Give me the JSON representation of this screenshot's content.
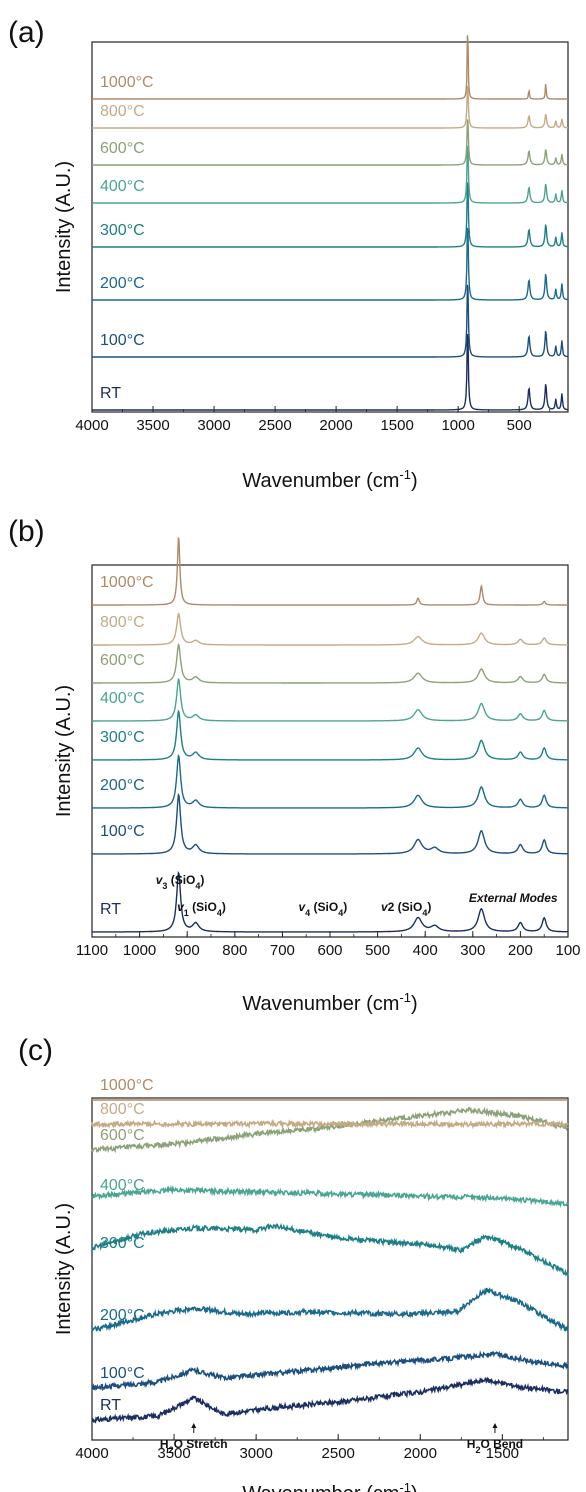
{
  "colors": {
    "RT": "#1b2f5e",
    "100°C": "#1d4f7e",
    "200°C": "#1a6a8c",
    "300°C": "#1e7f86",
    "400°C": "#4aa593",
    "600°C": "#8ca27a",
    "800°C": "#c4ab86",
    "1000°C": "#b08a68"
  },
  "chart_data": [
    {
      "type": "line",
      "panel": "(a)",
      "xlabel_main": "Wavenumber (cm",
      "xlabel_sup": "-1",
      "xlabel_tail": ")",
      "ylabel": "Intensity (A.U.)",
      "xlim": [
        4000,
        100
      ],
      "x_reversed": true,
      "x_ticks": [
        4000,
        3500,
        3000,
        2500,
        2000,
        1500,
        1000,
        500
      ],
      "y_ticks": false,
      "grid": false,
      "series": [
        {
          "name": "RT",
          "peaks": [
            {
              "x": 922,
              "h": 1.0,
              "w": 6
            },
            {
              "x": 420,
              "h": 0.25,
              "w": 9
            },
            {
              "x": 282,
              "h": 0.3,
              "w": 8
            },
            {
              "x": 200,
              "h": 0.12,
              "w": 6
            },
            {
              "x": 150,
              "h": 0.18,
              "w": 6
            }
          ]
        },
        {
          "name": "100°C",
          "peaks": [
            {
              "x": 922,
              "h": 0.95,
              "w": 6
            },
            {
              "x": 420,
              "h": 0.24,
              "w": 9
            },
            {
              "x": 282,
              "h": 0.3,
              "w": 8
            },
            {
              "x": 200,
              "h": 0.12,
              "w": 6
            },
            {
              "x": 150,
              "h": 0.18,
              "w": 6
            }
          ]
        },
        {
          "name": "200°C",
          "peaks": [
            {
              "x": 922,
              "h": 0.95,
              "w": 6
            },
            {
              "x": 420,
              "h": 0.23,
              "w": 9
            },
            {
              "x": 282,
              "h": 0.3,
              "w": 8
            },
            {
              "x": 200,
              "h": 0.12,
              "w": 6
            },
            {
              "x": 150,
              "h": 0.18,
              "w": 6
            }
          ]
        },
        {
          "name": "300°C",
          "peaks": [
            {
              "x": 922,
              "h": 0.85,
              "w": 6
            },
            {
              "x": 420,
              "h": 0.2,
              "w": 9
            },
            {
              "x": 282,
              "h": 0.26,
              "w": 8
            },
            {
              "x": 200,
              "h": 0.11,
              "w": 6
            },
            {
              "x": 150,
              "h": 0.16,
              "w": 6
            }
          ]
        },
        {
          "name": "400°C",
          "peaks": [
            {
              "x": 922,
              "h": 0.75,
              "w": 6
            },
            {
              "x": 420,
              "h": 0.18,
              "w": 9
            },
            {
              "x": 282,
              "h": 0.22,
              "w": 8
            },
            {
              "x": 200,
              "h": 0.1,
              "w": 6
            },
            {
              "x": 150,
              "h": 0.14,
              "w": 6
            }
          ]
        },
        {
          "name": "600°C",
          "peaks": [
            {
              "x": 922,
              "h": 0.6,
              "w": 6
            },
            {
              "x": 420,
              "h": 0.16,
              "w": 9
            },
            {
              "x": 282,
              "h": 0.18,
              "w": 8
            },
            {
              "x": 200,
              "h": 0.08,
              "w": 6
            },
            {
              "x": 150,
              "h": 0.12,
              "w": 6
            }
          ]
        },
        {
          "name": "800°C",
          "peaks": [
            {
              "x": 922,
              "h": 0.55,
              "w": 6
            },
            {
              "x": 420,
              "h": 0.14,
              "w": 9
            },
            {
              "x": 282,
              "h": 0.16,
              "w": 8
            },
            {
              "x": 200,
              "h": 0.08,
              "w": 6
            },
            {
              "x": 150,
              "h": 0.1,
              "w": 6
            }
          ]
        },
        {
          "name": "1000°C",
          "peaks": [
            {
              "x": 922,
              "h": 1.0,
              "w": 4
            },
            {
              "x": 420,
              "h": 0.12,
              "w": 4
            },
            {
              "x": 282,
              "h": 0.2,
              "w": 4
            }
          ]
        }
      ]
    },
    {
      "type": "line",
      "panel": "(b)",
      "xlabel_main": "Wavenumber (cm",
      "xlabel_sup": "-1",
      "xlabel_tail": ")",
      "ylabel": "Intensity (A.U.)",
      "xlim": [
        1100,
        100
      ],
      "x_reversed": true,
      "x_ticks": [
        1100,
        1000,
        900,
        800,
        700,
        600,
        500,
        400,
        300,
        200,
        100
      ],
      "y_ticks": false,
      "grid": false,
      "annotations": [
        {
          "x": 915,
          "parts": [
            [
              "v",
              true
            ],
            [
              "3",
              "sub"
            ],
            [
              " (SiO",
              false
            ],
            [
              "4",
              "sub"
            ],
            [
              ")",
              false
            ]
          ]
        },
        {
          "x": 870,
          "parts": [
            [
              "v",
              true
            ],
            [
              "1",
              "sub"
            ],
            [
              " (SiO",
              false
            ],
            [
              "4",
              "sub"
            ],
            [
              ")",
              false
            ]
          ]
        },
        {
          "x": 615,
          "parts": [
            [
              "v",
              true
            ],
            [
              "4",
              "sub"
            ],
            [
              " (SiO",
              false
            ],
            [
              "4",
              "sub"
            ],
            [
              ")",
              false
            ]
          ]
        },
        {
          "x": 440,
          "parts": [
            [
              "v",
              true
            ],
            [
              "2",
              false
            ],
            [
              " (SiO",
              false
            ],
            [
              "4",
              "sub"
            ],
            [
              ")",
              false
            ]
          ]
        },
        {
          "x": 215,
          "text": "External Modes"
        }
      ],
      "series": [
        {
          "name": "RT",
          "peaks": [
            {
              "x": 918,
              "h": 0.85,
              "w": 5
            },
            {
              "x": 882,
              "h": 0.12,
              "w": 8
            },
            {
              "x": 415,
              "h": 0.2,
              "w": 10
            },
            {
              "x": 380,
              "h": 0.08,
              "w": 10
            },
            {
              "x": 282,
              "h": 0.33,
              "w": 8
            },
            {
              "x": 200,
              "h": 0.13,
              "w": 6
            },
            {
              "x": 150,
              "h": 0.2,
              "w": 5
            }
          ]
        },
        {
          "name": "100°C",
          "peaks": [
            {
              "x": 918,
              "h": 0.85,
              "w": 5
            },
            {
              "x": 882,
              "h": 0.12,
              "w": 8
            },
            {
              "x": 415,
              "h": 0.2,
              "w": 10
            },
            {
              "x": 380,
              "h": 0.08,
              "w": 10
            },
            {
              "x": 282,
              "h": 0.33,
              "w": 8
            },
            {
              "x": 200,
              "h": 0.13,
              "w": 6
            },
            {
              "x": 150,
              "h": 0.2,
              "w": 5
            }
          ]
        },
        {
          "name": "200°C",
          "peaks": [
            {
              "x": 918,
              "h": 0.75,
              "w": 5
            },
            {
              "x": 882,
              "h": 0.1,
              "w": 8
            },
            {
              "x": 415,
              "h": 0.18,
              "w": 10
            },
            {
              "x": 282,
              "h": 0.3,
              "w": 8
            },
            {
              "x": 200,
              "h": 0.12,
              "w": 6
            },
            {
              "x": 150,
              "h": 0.18,
              "w": 5
            }
          ]
        },
        {
          "name": "300°C",
          "peaks": [
            {
              "x": 918,
              "h": 0.7,
              "w": 5
            },
            {
              "x": 882,
              "h": 0.1,
              "w": 8
            },
            {
              "x": 415,
              "h": 0.17,
              "w": 10
            },
            {
              "x": 282,
              "h": 0.28,
              "w": 8
            },
            {
              "x": 200,
              "h": 0.11,
              "w": 6
            },
            {
              "x": 150,
              "h": 0.17,
              "w": 5
            }
          ]
        },
        {
          "name": "400°C",
          "peaks": [
            {
              "x": 918,
              "h": 0.6,
              "w": 5
            },
            {
              "x": 882,
              "h": 0.08,
              "w": 8
            },
            {
              "x": 415,
              "h": 0.16,
              "w": 10
            },
            {
              "x": 282,
              "h": 0.25,
              "w": 8
            },
            {
              "x": 200,
              "h": 0.1,
              "w": 6
            },
            {
              "x": 150,
              "h": 0.15,
              "w": 5
            }
          ]
        },
        {
          "name": "600°C",
          "peaks": [
            {
              "x": 918,
              "h": 0.55,
              "w": 5
            },
            {
              "x": 882,
              "h": 0.08,
              "w": 8
            },
            {
              "x": 415,
              "h": 0.14,
              "w": 10
            },
            {
              "x": 282,
              "h": 0.2,
              "w": 8
            },
            {
              "x": 200,
              "h": 0.09,
              "w": 6
            },
            {
              "x": 150,
              "h": 0.12,
              "w": 5
            }
          ]
        },
        {
          "name": "800°C",
          "peaks": [
            {
              "x": 918,
              "h": 0.45,
              "w": 5
            },
            {
              "x": 882,
              "h": 0.06,
              "w": 8
            },
            {
              "x": 415,
              "h": 0.12,
              "w": 10
            },
            {
              "x": 282,
              "h": 0.17,
              "w": 8
            },
            {
              "x": 200,
              "h": 0.08,
              "w": 6
            },
            {
              "x": 150,
              "h": 0.1,
              "w": 5
            }
          ]
        },
        {
          "name": "1000°C",
          "peaks": [
            {
              "x": 918,
              "h": 1.0,
              "w": 3
            },
            {
              "x": 415,
              "h": 0.1,
              "w": 3
            },
            {
              "x": 282,
              "h": 0.28,
              "w": 3
            },
            {
              "x": 150,
              "h": 0.05,
              "w": 3
            }
          ]
        }
      ]
    },
    {
      "type": "line",
      "panel": "(c)",
      "xlabel_main": "Wavenumber (cm",
      "xlabel_sup": "-1",
      "xlabel_tail": ")",
      "ylabel": "Intensity (A.U.)",
      "xlim": [
        4000,
        1100
      ],
      "x_reversed": true,
      "x_ticks": [
        4000,
        3500,
        3000,
        2500,
        2000,
        1500
      ],
      "y_ticks": false,
      "grid": false,
      "annotations": [
        {
          "x": 3380,
          "parts": [
            [
              "H",
              false
            ],
            [
              "2",
              "sub"
            ],
            [
              "O Stretch",
              false
            ]
          ]
        },
        {
          "x": 1545,
          "parts": [
            [
              "H",
              false
            ],
            [
              "2",
              "sub"
            ],
            [
              "O Bend",
              false
            ]
          ]
        }
      ],
      "series": [
        {
          "name": "RT",
          "shape": [
            [
              4000,
              0.0
            ],
            [
              3600,
              0.1
            ],
            [
              3380,
              0.55
            ],
            [
              3200,
              0.15
            ],
            [
              2900,
              0.3
            ],
            [
              2500,
              0.45
            ],
            [
              2000,
              0.7
            ],
            [
              1600,
              1.0
            ],
            [
              1350,
              0.8
            ],
            [
              1100,
              0.7
            ]
          ]
        },
        {
          "name": "100°C",
          "shape": [
            [
              4000,
              0.0
            ],
            [
              3600,
              0.15
            ],
            [
              3380,
              0.45
            ],
            [
              3200,
              0.25
            ],
            [
              2800,
              0.4
            ],
            [
              2300,
              0.6
            ],
            [
              1800,
              0.75
            ],
            [
              1550,
              0.85
            ],
            [
              1300,
              0.65
            ],
            [
              1100,
              0.55
            ]
          ]
        },
        {
          "name": "200°C",
          "shape": [
            [
              4000,
              0.0
            ],
            [
              3600,
              0.4
            ],
            [
              3380,
              0.55
            ],
            [
              3100,
              0.4
            ],
            [
              2700,
              0.45
            ],
            [
              2100,
              0.4
            ],
            [
              1780,
              0.45
            ],
            [
              1600,
              1.0
            ],
            [
              1400,
              0.7
            ],
            [
              1100,
              0.0
            ]
          ]
        },
        {
          "name": "300°C",
          "shape": [
            [
              4000,
              0.25
            ],
            [
              3700,
              0.6
            ],
            [
              3380,
              0.75
            ],
            [
              3000,
              0.7
            ],
            [
              2900,
              0.8
            ],
            [
              2500,
              0.5
            ],
            [
              1900,
              0.3
            ],
            [
              1750,
              0.2
            ],
            [
              1600,
              0.55
            ],
            [
              1400,
              0.25
            ],
            [
              1100,
              -0.4
            ]
          ]
        },
        {
          "name": "400°C",
          "shape": [
            [
              4000,
              0.1
            ],
            [
              3500,
              0.25
            ],
            [
              3000,
              0.2
            ],
            [
              2500,
              0.15
            ],
            [
              2000,
              0.1
            ],
            [
              1500,
              0.05
            ],
            [
              1100,
              -0.1
            ]
          ]
        },
        {
          "name": "600°C",
          "shape": [
            [
              4000,
              0.0
            ],
            [
              3500,
              0.15
            ],
            [
              3000,
              0.4
            ],
            [
              2500,
              0.6
            ],
            [
              2000,
              0.85
            ],
            [
              1700,
              1.0
            ],
            [
              1400,
              0.85
            ],
            [
              1100,
              0.55
            ]
          ]
        },
        {
          "name": "800°C",
          "shape": [
            [
              4000,
              0.0
            ],
            [
              1100,
              0.0
            ]
          ]
        },
        {
          "name": "1000°C",
          "shape": [
            [
              4000,
              0.0
            ],
            [
              1100,
              0.0
            ]
          ]
        }
      ]
    }
  ]
}
